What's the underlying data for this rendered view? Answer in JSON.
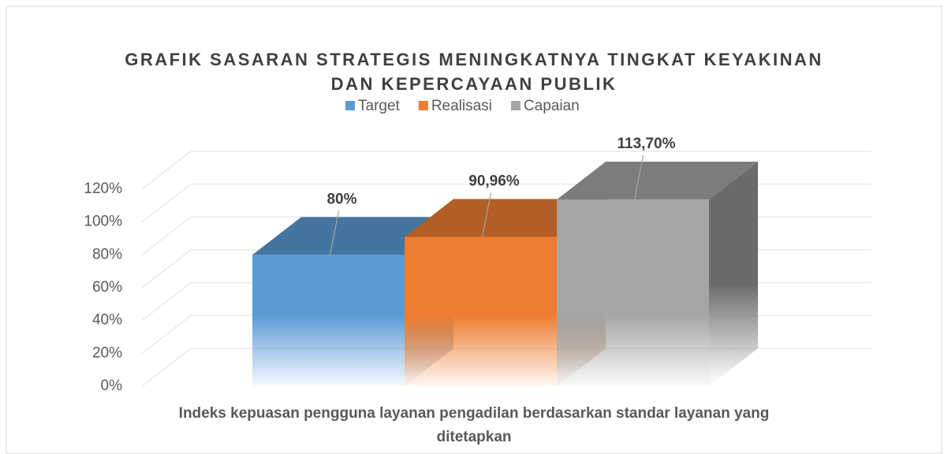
{
  "chart_data": {
    "type": "bar3d",
    "title": "GRAFIK SASARAN STRATEGIS MENINGKATNYA TINGKAT KEYAKINAN DAN KEPERCAYAAN PUBLIK",
    "categories": [
      "Indeks kepuasan pengguna layanan pengadilan berdasarkan standar layanan yang ditetapkan"
    ],
    "series": [
      {
        "name": "Target",
        "color": "#5b9bd5",
        "values": [
          80
        ],
        "value_labels": [
          "80%"
        ]
      },
      {
        "name": "Realisasi",
        "color": "#ed7d31",
        "values": [
          90.96
        ],
        "value_labels": [
          "90,96%"
        ]
      },
      {
        "name": "Capaian",
        "color": "#a5a5a5",
        "values": [
          113.7
        ],
        "value_labels": [
          "113,70%"
        ]
      }
    ],
    "ylim": [
      0,
      120
    ],
    "yticks": [
      {
        "value": 0,
        "label": "0%"
      },
      {
        "value": 20,
        "label": "20%"
      },
      {
        "value": 40,
        "label": "40%"
      },
      {
        "value": 60,
        "label": "60%"
      },
      {
        "value": 80,
        "label": "80%"
      },
      {
        "value": 100,
        "label": "100%"
      },
      {
        "value": 120,
        "label": "120%"
      }
    ],
    "grid": true,
    "legend": "top"
  }
}
